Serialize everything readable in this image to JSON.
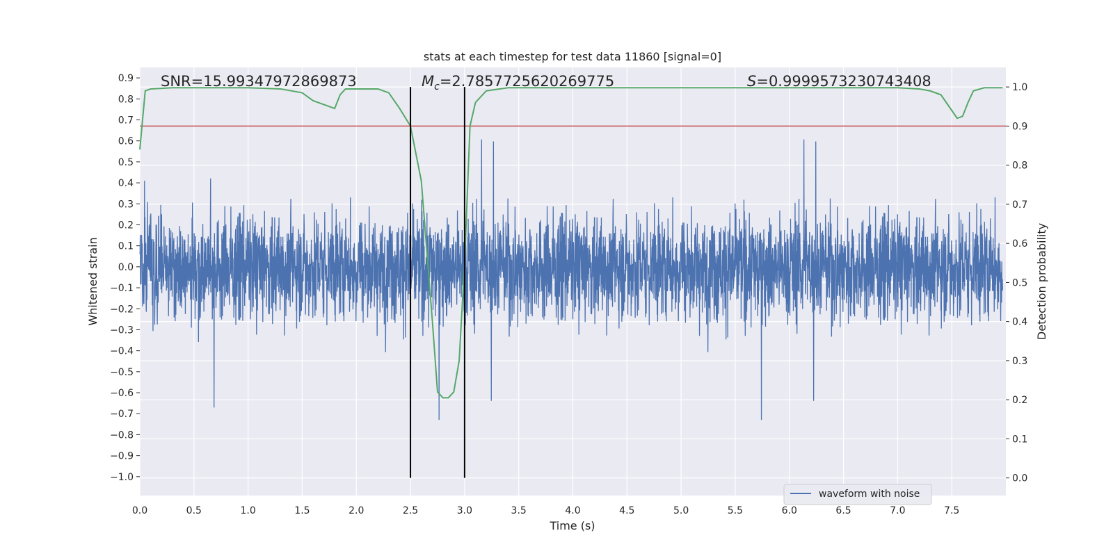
{
  "chart_data": {
    "type": "line",
    "title": "stats at each timestep for test data 11860 [signal=0]",
    "xlabel": "Time (s)",
    "ylabel": "Whitened strain",
    "y2label": "Detection probability",
    "xlim": [
      0.0,
      8.0
    ],
    "ylim": [
      -1.09,
      0.95
    ],
    "y2lim": [
      -0.045,
      1.05
    ],
    "xticks": [
      "0.0",
      "0.5",
      "1.0",
      "1.5",
      "2.0",
      "2.5",
      "3.0",
      "3.5",
      "4.0",
      "4.5",
      "5.0",
      "5.5",
      "6.0",
      "6.5",
      "7.0",
      "7.5"
    ],
    "yticks": [
      "0.9",
      "0.8",
      "0.7",
      "0.6",
      "0.5",
      "0.4",
      "0.3",
      "0.2",
      "0.1",
      "0.0",
      "−0.1",
      "−0.2",
      "−0.3",
      "−0.4",
      "−0.5",
      "−0.6",
      "−0.7",
      "−0.8",
      "−0.9",
      "−1.0"
    ],
    "y2ticks": [
      "1.0",
      "0.9",
      "0.8",
      "0.7",
      "0.6",
      "0.5",
      "0.4",
      "0.3",
      "0.2",
      "0.1",
      "0.0"
    ],
    "grid": true,
    "legend": {
      "placement": "lower-right"
    },
    "annotations": {
      "snr": "SNR=15.99347972869873",
      "mc_prefix": "M",
      "mc_sub": "c",
      "mc_value": "=2.7857725620269775",
      "s_prefix": "S",
      "s_value": "=0.9999573230743408"
    },
    "vlines": [
      2.5,
      3.0
    ],
    "threshold": {
      "value": 0.9,
      "color": "#c44e52"
    },
    "series": [
      {
        "name": "waveform with noise",
        "color": "#4c72b0",
        "kind": "noise-strain",
        "typical_range": [
          -0.45,
          0.45
        ],
        "extreme_range": [
          -1.0,
          0.86
        ]
      },
      {
        "kind": "detection-probability",
        "color": "#55a868",
        "x": [
          0.0,
          0.05,
          0.1,
          0.3,
          0.5,
          1.0,
          1.3,
          1.5,
          1.6,
          1.7,
          1.8,
          1.85,
          1.9,
          2.0,
          2.2,
          2.3,
          2.4,
          2.5,
          2.6,
          2.7,
          2.75,
          2.8,
          2.85,
          2.9,
          2.95,
          3.0,
          3.05,
          3.1,
          3.2,
          3.4,
          4.0,
          5.0,
          6.0,
          7.0,
          7.2,
          7.3,
          7.4,
          7.5,
          7.55,
          7.6,
          7.65,
          7.7,
          7.8,
          7.9,
          7.97
        ],
        "y": [
          0.84,
          0.99,
          0.995,
          0.998,
          0.998,
          0.998,
          0.995,
          0.985,
          0.965,
          0.955,
          0.945,
          0.98,
          0.995,
          0.995,
          0.995,
          0.985,
          0.945,
          0.9,
          0.76,
          0.41,
          0.22,
          0.205,
          0.205,
          0.22,
          0.3,
          0.55,
          0.9,
          0.96,
          0.99,
          0.998,
          0.998,
          0.998,
          0.998,
          0.998,
          0.995,
          0.99,
          0.98,
          0.94,
          0.92,
          0.925,
          0.96,
          0.99,
          0.998,
          0.998,
          0.998
        ]
      }
    ]
  }
}
